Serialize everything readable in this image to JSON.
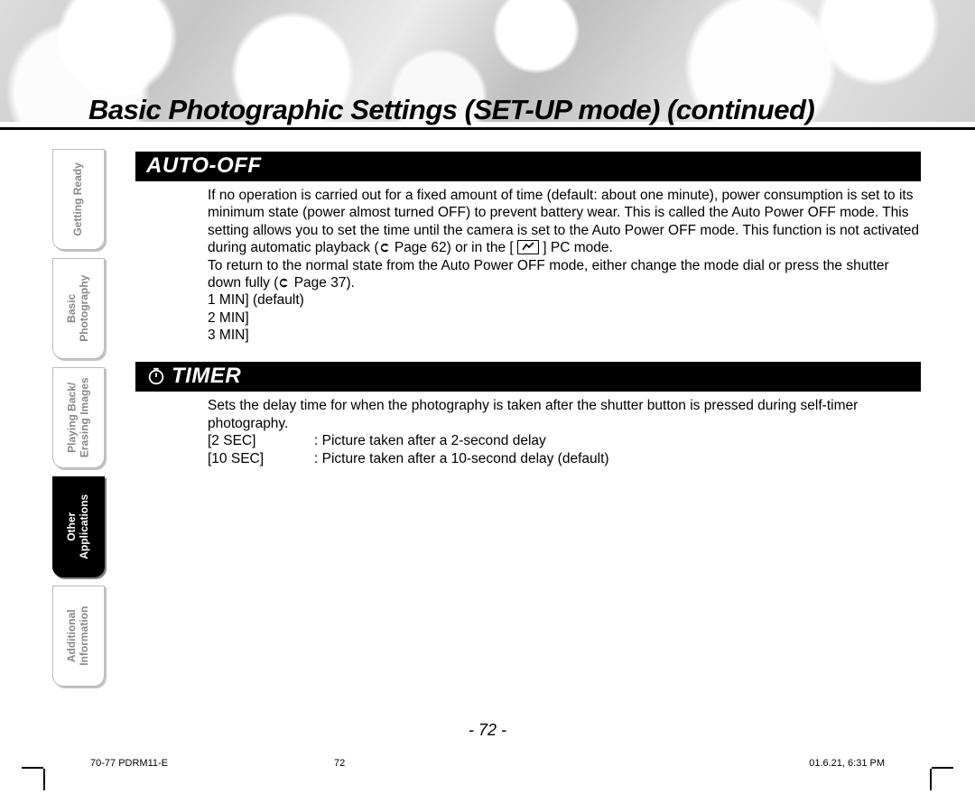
{
  "page": {
    "title": "Basic Photographic Settings (SET-UP mode) (continued)",
    "number_display": "- 72 -"
  },
  "tabs": [
    {
      "label": "Getting Ready",
      "active": false
    },
    {
      "label": "Basic\nPhotography",
      "active": false
    },
    {
      "label": "Playing Back/\nErasing Images",
      "active": false
    },
    {
      "label": "Other\nApplications",
      "active": true
    },
    {
      "label": "Additional\nInformation",
      "active": false
    }
  ],
  "sections": {
    "auto_off": {
      "heading": "AUTO-OFF",
      "body_line1": "If no operation is carried out for a fixed amount of time (default: about one minute), power consumption is set to its minimum state (power almost turned OFF) to prevent battery wear. This is called the Auto Power OFF mode. This setting allows you to set the time until the camera is set to the Auto Power OFF mode. This function is not activated during automatic playback (",
      "body_ref1": " Page 62) or in the [ ",
      "body_ref1b": " ] PC mode.",
      "body_line2a": "To return to the normal state from the Auto Power OFF mode, either change the mode dial or press the shutter down fully (",
      "body_ref2": " Page 37).",
      "opt1": "1 MIN] (default)",
      "opt2": "2 MIN]",
      "opt3": "3 MIN]"
    },
    "timer": {
      "heading": "TIMER",
      "body": "Sets the delay time for when the photography is taken after the shutter button is pressed during self-timer photography.",
      "rows": [
        {
          "key": "[2 SEC]",
          "val": ": Picture taken after a 2-second delay"
        },
        {
          "key": "[10 SEC]",
          "val": ": Picture taken after a 10-second delay (default)"
        }
      ]
    }
  },
  "footer": {
    "doc_id": "70-77 PDRM11-E",
    "page": "72",
    "timestamp": "01.6.21, 6:31 PM"
  },
  "colors": {
    "black": "#000000",
    "white": "#ffffff",
    "tab_inactive_text": "#888888",
    "tab_shadow": "#c2c2c2"
  }
}
